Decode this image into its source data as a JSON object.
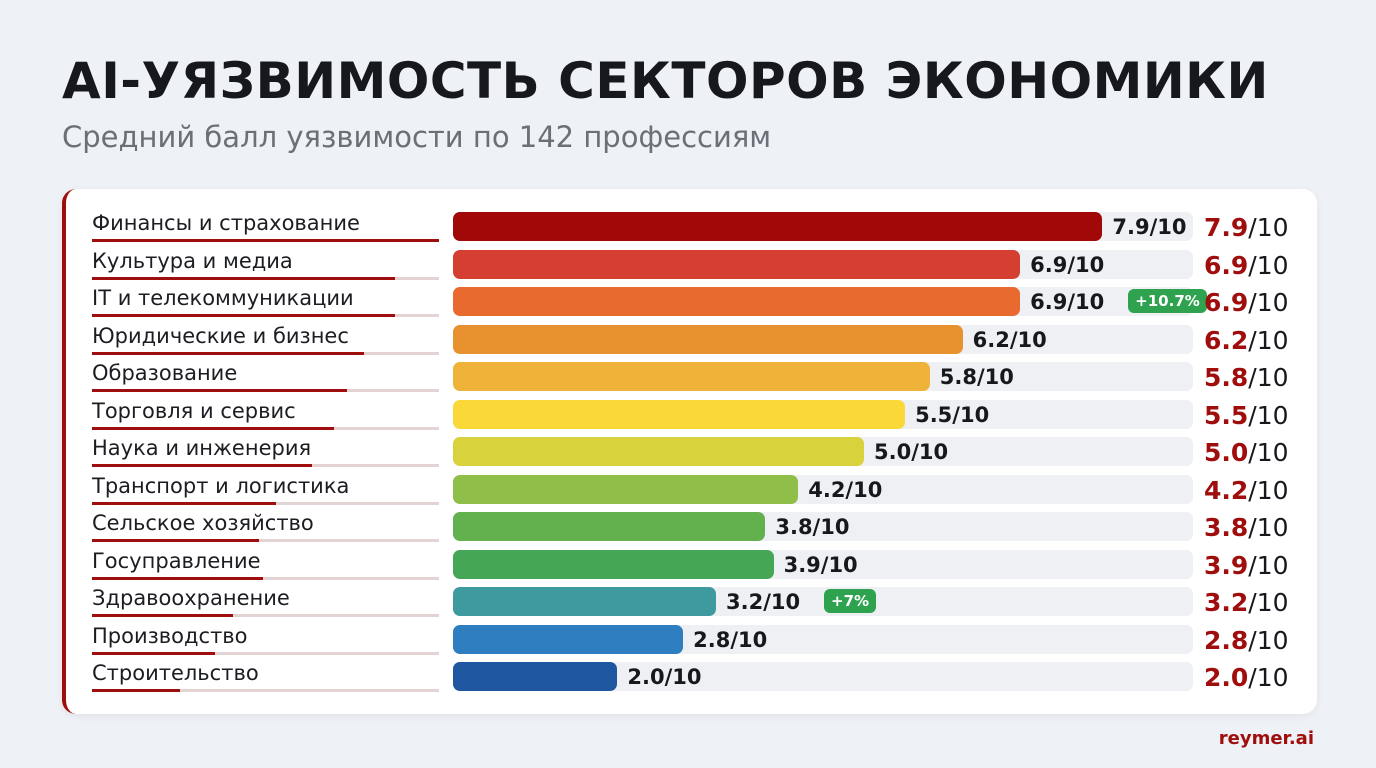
{
  "title": "AI-УЯЗВИМОСТЬ СЕКТОРОВ ЭКОНОМИКИ",
  "subtitle": "Средний балл уязвимости по 142 профессиям",
  "brand": "reymer.ai",
  "chart_data": {
    "type": "bar",
    "orientation": "horizontal",
    "xlim": [
      0,
      10
    ],
    "categories": [
      "Финансы и страхование",
      "Культура и медиа",
      "IT и телекоммуникации",
      "Юридические и бизнес",
      "Образование",
      "Торговля и сервис",
      "Наука и инженерия",
      "Транспорт и логистика",
      "Сельское хозяйство",
      "Госуправление",
      "Здравоохранение",
      "Производство",
      "Строительство"
    ],
    "values": [
      7.9,
      6.9,
      6.9,
      6.2,
      5.8,
      5.5,
      5.0,
      4.2,
      3.8,
      3.9,
      3.2,
      2.8,
      2.0
    ],
    "value_labels": [
      "7.9/10",
      "6.9/10",
      "6.9/10",
      "6.2/10",
      "5.8/10",
      "5.5/10",
      "5.0/10",
      "4.2/10",
      "3.8/10",
      "3.9/10",
      "3.2/10",
      "2.8/10",
      "2.0/10"
    ],
    "score_main": [
      "7.9",
      "6.9",
      "6.9",
      "6.2",
      "5.8",
      "5.5",
      "5.0",
      "4.2",
      "3.8",
      "3.9",
      "3.2",
      "2.8",
      "2.0"
    ],
    "score_suffix": "/10",
    "badges": [
      null,
      null,
      "+10.7%",
      null,
      null,
      null,
      null,
      null,
      null,
      null,
      "+7%",
      null,
      null
    ],
    "colors": [
      "#a10808",
      "#d43f31",
      "#e86a2e",
      "#e8922f",
      "#eeb338",
      "#f9d838",
      "#d8d23c",
      "#8fbf48",
      "#63b04e",
      "#45a655",
      "#3f9aa0",
      "#2f7ec0",
      "#1f56a0"
    ],
    "badge_color": "#2ea24f",
    "accent": "#a00d0d"
  }
}
